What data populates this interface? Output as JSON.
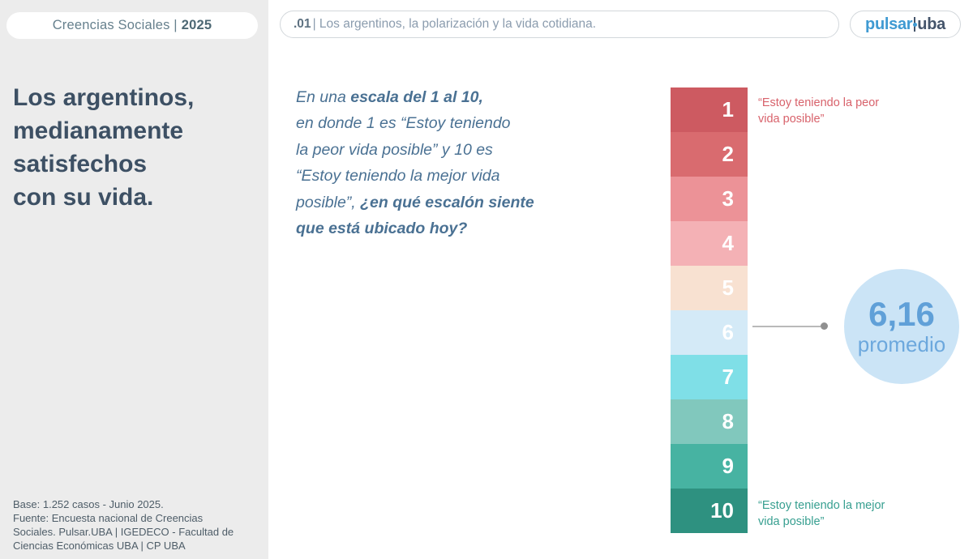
{
  "header": {
    "badge": {
      "prefix": "Creencias Sociales |",
      "year": "2025"
    },
    "topic": {
      "number": ".01",
      "text": "| Los argentinos, la polarización y la vida cotidiana."
    },
    "logo": {
      "part1": "pulsar",
      "part2": "uba"
    }
  },
  "sidebar": {
    "title": "Los argentinos,\nmedianamente\nsatisfechos\ncon su vida.",
    "footnote": "Base: 1.252 casos - Junio 2025.\nFuente: Encuesta nacional de Creencias\nSociales. Pulsar.UBA | IGEDECO - Facultad de\nCiencias Económicas UBA | CP UBA"
  },
  "question": {
    "segments": [
      {
        "text": "En una ",
        "bold": false
      },
      {
        "text": "escala del 1 al 10,",
        "bold": true
      },
      {
        "text": "\nen donde 1 es “Estoy teniendo\nla peor vida posible” y 10 es\n“Estoy teniendo la mejor vida\nposible”, ",
        "bold": false
      },
      {
        "text": "¿en qué escalón siente\nque está ubicado hoy?",
        "bold": true
      }
    ]
  },
  "chart_data": {
    "type": "bar",
    "subtype": "ladder-scale-1-10",
    "categories": [
      "1",
      "2",
      "3",
      "4",
      "5",
      "6",
      "7",
      "8",
      "9",
      "10"
    ],
    "steps": [
      {
        "value": "1",
        "color": "#cd5a61"
      },
      {
        "value": "2",
        "color": "#d96b6f"
      },
      {
        "value": "3",
        "color": "#ec9297"
      },
      {
        "value": "4",
        "color": "#f4b1b5"
      },
      {
        "value": "5",
        "color": "#f8e1d1"
      },
      {
        "value": "6",
        "color": "#d4eaf7"
      },
      {
        "value": "7",
        "color": "#7fdfe7"
      },
      {
        "value": "8",
        "color": "#81c8bd"
      },
      {
        "value": "9",
        "color": "#47b3a2"
      },
      {
        "value": "10",
        "color": "#2e9180"
      }
    ],
    "average": {
      "value": 6.16,
      "display": "6,16",
      "label": "promedio",
      "marker_step": "6"
    },
    "anchor_min_display": "“Estoy teniendo la peor\nvida posible”",
    "anchor_max_display": "“Estoy teniendo la mejor\nvida posible”",
    "legend_position": "right"
  },
  "colors": {
    "anchor_min": "#d8626b",
    "anchor_max": "#379f90",
    "average_bubble_bg": "#cbe4f6",
    "average_text": "#60a0d8",
    "sidebar_bg": "#ececec",
    "title_text": "#3d5064",
    "question_text": "#4a7193",
    "logo_blue": "#3f9ad2",
    "logo_dark": "#44546a"
  }
}
